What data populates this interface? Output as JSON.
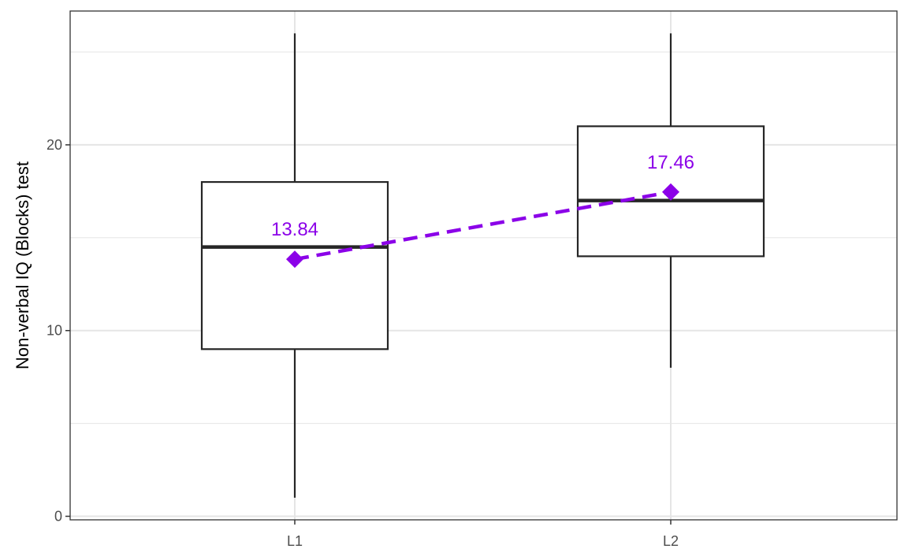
{
  "chart_data": {
    "type": "box",
    "ylabel": "Non-verbal IQ (Blocks) test",
    "xlabel": "",
    "categories": [
      "L1",
      "L2"
    ],
    "ylim": [
      -0.5,
      27
    ],
    "yticks": [
      0,
      10,
      20
    ],
    "yticks_labels": [
      "0",
      "10",
      "20"
    ],
    "ygrid_minor": [
      5,
      15,
      25
    ],
    "grid": true,
    "boxes": [
      {
        "category": "L1",
        "whisker_low": 1,
        "q1": 9,
        "median": 14.5,
        "q3": 18,
        "whisker_high": 26
      },
      {
        "category": "L2",
        "whisker_low": 8,
        "q1": 14,
        "median": 17,
        "q3": 21,
        "whisker_high": 26
      }
    ],
    "means": {
      "values": [
        13.84,
        17.46
      ],
      "labels": [
        "13.84",
        "17.46"
      ],
      "color": "#8B00E8",
      "line_style": "dashed",
      "marker": "diamond"
    },
    "colors": {
      "box_stroke": "#262626",
      "grid": "#e5e5e5",
      "panel_border": "#333333"
    }
  }
}
